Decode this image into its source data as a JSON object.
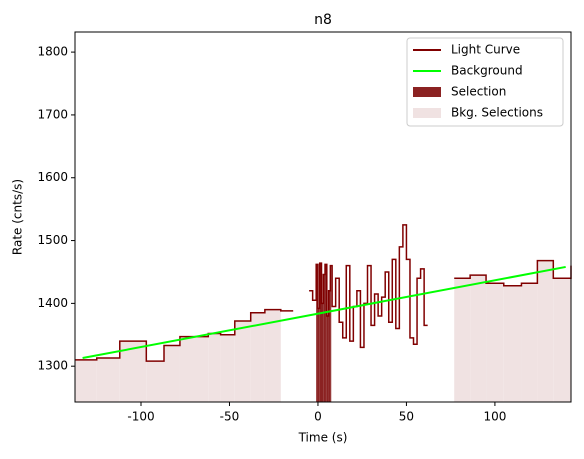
{
  "chart_data": {
    "type": "step",
    "title": "n8",
    "xlabel": "Time (s)",
    "ylabel": "Rate (cnts/s)",
    "xlim": [
      -137.3,
      143
    ],
    "ylim": [
      1243,
      1832
    ],
    "xticks": [
      -100,
      -50,
      0,
      50,
      100
    ],
    "yticks": [
      1300,
      1400,
      1500,
      1600,
      1700,
      1800
    ],
    "series": [
      {
        "name": "Light Curve",
        "color": "#800000",
        "x": [
          -137,
          -125,
          -112,
          -97,
          -87,
          -78,
          -62,
          -55,
          -47,
          -38,
          -30,
          -21,
          -14,
          -5,
          -3,
          -1,
          0,
          1,
          2,
          3,
          4,
          5,
          6,
          7,
          8,
          10,
          12,
          14,
          16,
          18,
          20,
          22,
          24,
          26,
          28,
          30,
          32,
          34,
          36,
          38,
          40,
          42,
          44,
          46,
          48,
          50,
          52,
          54,
          56,
          58,
          60,
          62,
          77,
          86,
          95,
          105,
          115,
          124,
          133,
          143
        ],
        "values": [
          1310,
          1313,
          1340,
          1308,
          1333,
          1347,
          1352,
          1350,
          1372,
          1385,
          1390,
          1388,
          null,
          1420,
          1405,
          1462,
          1392,
          1464,
          1400,
          1446,
          1462,
          1380,
          1420,
          1460,
          1395,
          1440,
          1370,
          1345,
          1460,
          1340,
          1395,
          1420,
          1330,
          1400,
          1460,
          1365,
          1415,
          1380,
          1410,
          1450,
          1370,
          1470,
          1360,
          1490,
          1525,
          1470,
          1345,
          1335,
          1440,
          1455,
          1365,
          null,
          1440,
          1445,
          1432,
          1428,
          1432,
          1468,
          1440,
          1460
        ]
      },
      {
        "name": "Background",
        "color": "#00ff00",
        "x": [
          -133,
          140
        ],
        "values": [
          1313,
          1458
        ]
      }
    ],
    "selection": {
      "name": "Selection",
      "color": "#8b2222",
      "span": [
        -1,
        7.5
      ]
    },
    "bkg_selections": {
      "name": "Bkg. Selections",
      "color": "#f0e2e2",
      "spans": [
        [
          -137.3,
          -21
        ],
        [
          77,
          143
        ]
      ]
    },
    "legend": "upper right"
  }
}
